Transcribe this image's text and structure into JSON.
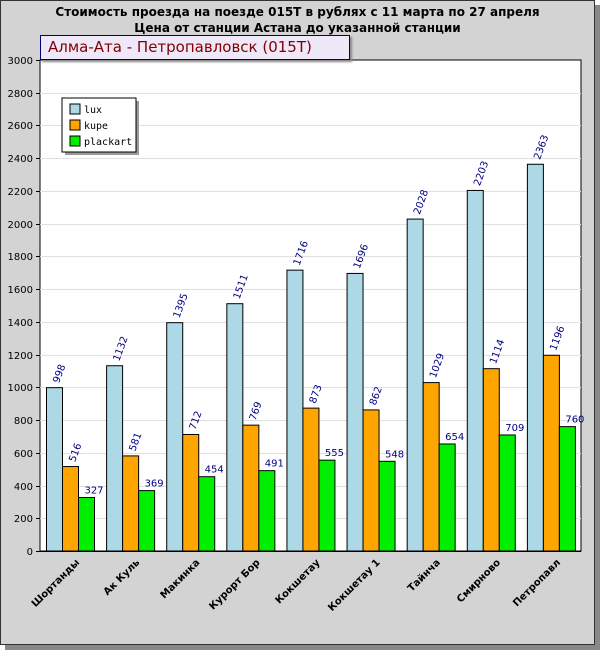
{
  "chart_data": {
    "type": "bar",
    "title": "Стоимость проезда на поезде 015Т в рублях с 11 марта по 27 апреля",
    "subtitle": "Цена от станции Астана до указанной станции",
    "route_label": "Алма-Ата - Петропавловск (015Т)",
    "categories": [
      "Шортанды",
      "Ак Куль",
      "Макинка",
      "Курорт Бор",
      "Кокшетау",
      "Кокшетау 1",
      "Тайнча",
      "Смирново",
      "Петропавл"
    ],
    "series": [
      {
        "name": "lux",
        "color": "#add8e6",
        "values": [
          998,
          1132,
          1395,
          1511,
          1716,
          1696,
          2028,
          2203,
          2363
        ]
      },
      {
        "name": "kupe",
        "color": "#ffa500",
        "values": [
          516,
          581,
          712,
          769,
          873,
          862,
          1029,
          1114,
          1196
        ]
      },
      {
        "name": "plackart",
        "color": "#00ee00",
        "values": [
          327,
          369,
          454,
          491,
          555,
          548,
          654,
          709,
          760
        ]
      }
    ],
    "ylim": [
      0,
      3000
    ],
    "yticks": [
      0,
      200,
      400,
      600,
      800,
      1000,
      1200,
      1400,
      1600,
      1800,
      2000,
      2200,
      2400,
      2600,
      2800,
      3000
    ],
    "grid": true,
    "legend_position": "top-left"
  }
}
